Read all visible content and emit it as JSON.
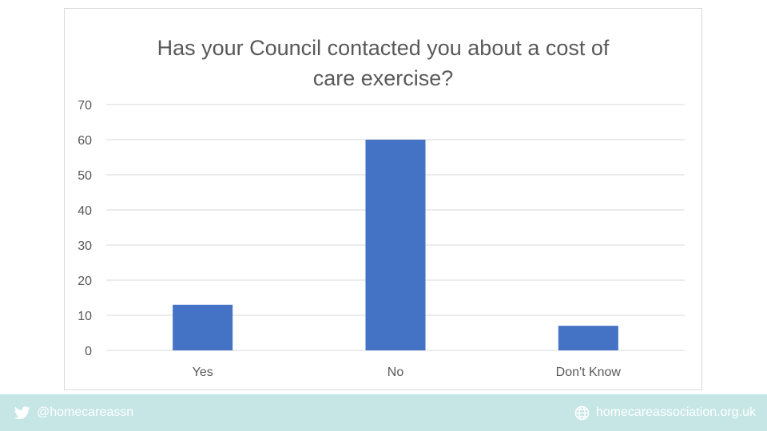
{
  "chart_data": {
    "type": "bar",
    "title_lines": [
      "Has your Council contacted you about a cost of",
      "care exercise?"
    ],
    "categories": [
      "Yes",
      "No",
      "Don't Know"
    ],
    "values": [
      13,
      60,
      7
    ],
    "ylim": [
      0,
      70
    ],
    "yticks": [
      0,
      10,
      20,
      30,
      40,
      50,
      60,
      70
    ],
    "grid": true,
    "bar_color": "#4472c4"
  },
  "footer": {
    "twitter_handle": "@homecareassn",
    "website": "homecareassociation.org.uk",
    "twitter_icon": "twitter-bird-icon",
    "website_icon": "globe-icon",
    "background_color": "#c6e6e6"
  }
}
